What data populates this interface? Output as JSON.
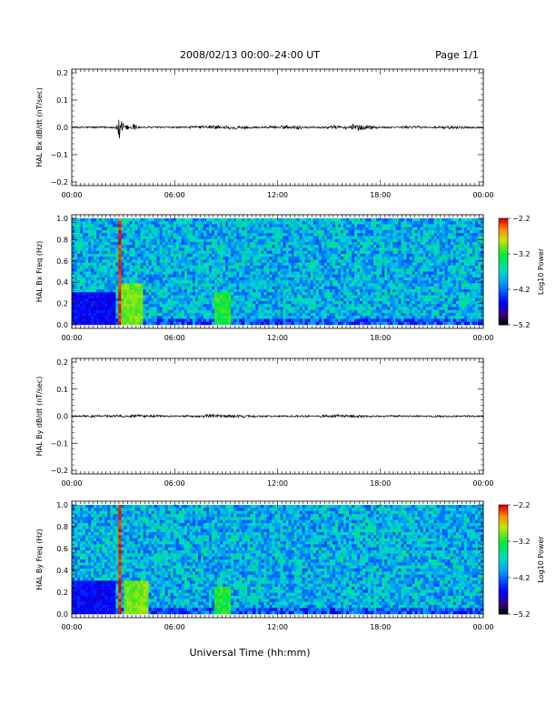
{
  "header": {
    "date_range": "2008/02/13  00:00–24:00 UT",
    "page_label": "Page 1/1"
  },
  "footer": {
    "xlabel": "Universal Time (hh:mm)"
  },
  "time_ticks": [
    "00:00",
    "06:00",
    "12:00",
    "18:00",
    "00:00"
  ],
  "colors": {
    "trace": "#000000",
    "background": "#ffffff"
  },
  "chart_data": [
    {
      "type": "line",
      "ylabel": "HAL Bx dB/dt (nT/sec)",
      "ylim": [
        -0.2,
        0.2
      ],
      "yticks": [
        "0.2",
        "0.1",
        "0.0",
        "−0.1",
        "−0.2"
      ],
      "x_unit": "hours UT",
      "xlim": [
        0,
        24
      ],
      "series": [
        {
          "x": [
            0,
            2.5,
            2.7,
            2.75,
            2.9,
            3.2,
            3.6,
            4.0,
            6.0,
            8.5,
            9.0,
            11.0,
            12.5,
            13.0,
            15.5,
            16.0,
            16.4,
            16.6,
            18.0,
            20.0,
            22.0,
            24.0
          ],
          "values": [
            0.0,
            0.0,
            -0.01,
            -0.05,
            0.02,
            -0.01,
            0.01,
            0.0,
            0.0,
            0.005,
            -0.005,
            0.0,
            0.005,
            -0.005,
            0.005,
            -0.005,
            0.01,
            -0.01,
            0.0,
            0.003,
            -0.003,
            0.0
          ]
        }
      ]
    },
    {
      "type": "heatmap",
      "ylabel": "HAL Bx Freq (Hz)",
      "ylim": [
        0,
        1.0
      ],
      "yticks": [
        "1.0",
        "0.8",
        "0.6",
        "0.4",
        "0.2",
        "0.0"
      ],
      "x_unit": "hours UT",
      "xlim": [
        0,
        24
      ],
      "colorbar": {
        "label": "Log10 Power",
        "ticks": [
          "−2.2",
          "−3.2",
          "−4.2",
          "−5.2"
        ],
        "range": [
          -5.2,
          -2.2
        ]
      },
      "features": [
        {
          "x_hours": [
            2.7,
            2.85
          ],
          "f_hz": [
            0.0,
            1.0
          ],
          "log_power": -2.3
        },
        {
          "x_hours": [
            2.9,
            4.2
          ],
          "f_hz": [
            0.0,
            0.4
          ],
          "log_power": -3.0
        },
        {
          "x_hours": [
            8.3,
            9.3
          ],
          "f_hz": [
            0.0,
            0.3
          ],
          "log_power": -3.2
        },
        {
          "x_hours": [
            0.0,
            2.5
          ],
          "f_hz": [
            0.0,
            0.3
          ],
          "log_power": -4.6
        }
      ]
    },
    {
      "type": "line",
      "ylabel": "HAL By dB/dt (nT/sec)",
      "ylim": [
        -0.2,
        0.2
      ],
      "yticks": [
        "0.2",
        "0.1",
        "0.0",
        "−0.1",
        "−0.2"
      ],
      "x_unit": "hours UT",
      "xlim": [
        0,
        24
      ],
      "series": [
        {
          "x": [
            0,
            2.8,
            3.0,
            3.5,
            6.0,
            8.5,
            9.0,
            12.0,
            16.0,
            16.3,
            18.0,
            24.0
          ],
          "values": [
            0.0,
            0.003,
            -0.003,
            0.003,
            0.0,
            0.004,
            -0.004,
            0.0,
            0.003,
            -0.003,
            0.0,
            0.0
          ]
        }
      ]
    },
    {
      "type": "heatmap",
      "ylabel": "HAL By Freq (Hz)",
      "ylim": [
        0,
        1.0
      ],
      "yticks": [
        "1.0",
        "0.8",
        "0.6",
        "0.4",
        "0.2",
        "0.0"
      ],
      "x_unit": "hours UT",
      "xlim": [
        0,
        24
      ],
      "colorbar": {
        "label": "Log10 Power",
        "ticks": [
          "−2.2",
          "−3.2",
          "−4.2",
          "−5.2"
        ],
        "range": [
          -5.2,
          -2.2
        ]
      },
      "features": [
        {
          "x_hours": [
            2.7,
            2.85
          ],
          "f_hz": [
            0.0,
            1.0
          ],
          "log_power": -2.3
        },
        {
          "x_hours": [
            3.0,
            4.5
          ],
          "f_hz": [
            0.0,
            0.3
          ],
          "log_power": -3.0
        },
        {
          "x_hours": [
            8.3,
            9.3
          ],
          "f_hz": [
            0.0,
            0.25
          ],
          "log_power": -3.2
        },
        {
          "x_hours": [
            0.0,
            2.5
          ],
          "f_hz": [
            0.0,
            0.3
          ],
          "log_power": -4.6
        }
      ]
    }
  ]
}
